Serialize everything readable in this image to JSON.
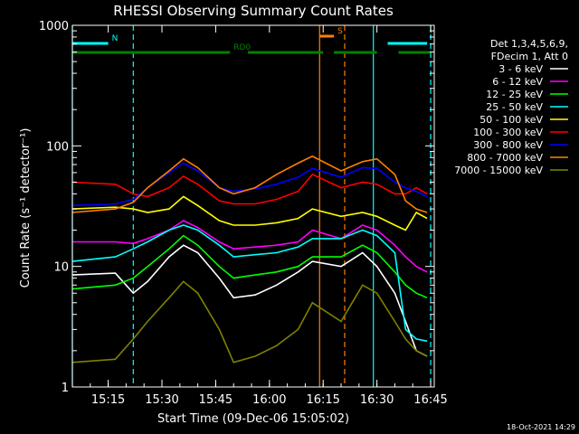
{
  "chart_data": {
    "type": "line",
    "title": "RHESSI Observing Summary Count Rates",
    "xlabel": "Start Time (09-Dec-06 15:05:02)",
    "ylabel": "Count Rate (s⁻¹ detector⁻¹)",
    "y_scale": "log",
    "ylim": [
      1,
      1000
    ],
    "xlim": [
      "15:05",
      "16:46"
    ],
    "x_ticks": [
      "15:15",
      "15:30",
      "15:45",
      "16:00",
      "16:15",
      "16:30",
      "16:45"
    ],
    "y_ticks": [
      "1",
      "10",
      "100",
      "1000"
    ],
    "legend_position": "right",
    "legend_header": [
      "Det 1,3,4,5,6,9,",
      "FDecim 1, Att 0"
    ],
    "series": [
      {
        "name": "3 - 6 keV",
        "color": "#ffffff",
        "x": [
          "15:05",
          "15:17",
          "15:22",
          "15:26",
          "15:32",
          "15:36",
          "15:40",
          "15:46",
          "15:50",
          "15:56",
          "16:02",
          "16:08",
          "16:12",
          "16:20",
          "16:26",
          "16:30",
          "16:35",
          "16:38",
          "16:41",
          "16:44"
        ],
        "values": [
          8.5,
          8.8,
          6,
          7.5,
          12,
          15,
          13,
          8,
          5.5,
          5.8,
          7,
          9,
          11,
          10,
          13,
          10,
          6,
          3.5,
          2,
          1.8
        ]
      },
      {
        "name": "6 - 12 keV",
        "color": "#ff00ff",
        "x": [
          "15:05",
          "15:17",
          "15:22",
          "15:26",
          "15:32",
          "15:36",
          "15:40",
          "15:46",
          "15:50",
          "15:56",
          "16:02",
          "16:08",
          "16:12",
          "16:20",
          "16:26",
          "16:30",
          "16:35",
          "16:38",
          "16:41",
          "16:44"
        ],
        "values": [
          16,
          16,
          15.5,
          17,
          20,
          24,
          21,
          16,
          14,
          14.5,
          15,
          16,
          20,
          17,
          22,
          20,
          15,
          12,
          10,
          9
        ]
      },
      {
        "name": "12 - 25 keV",
        "color": "#00ff00",
        "x": [
          "15:05",
          "15:17",
          "15:22",
          "15:26",
          "15:32",
          "15:36",
          "15:40",
          "15:46",
          "15:50",
          "15:56",
          "16:02",
          "16:08",
          "16:12",
          "16:20",
          "16:26",
          "16:30",
          "16:35",
          "16:38",
          "16:41",
          "16:44"
        ],
        "values": [
          6.5,
          7,
          8,
          10,
          14,
          18,
          15,
          10,
          8,
          8.5,
          9,
          10,
          12,
          12,
          15,
          13,
          9,
          7,
          6,
          5.5
        ]
      },
      {
        "name": "25 - 50 keV",
        "color": "#00ffff",
        "x": [
          "15:05",
          "15:17",
          "15:22",
          "15:26",
          "15:32",
          "15:36",
          "15:40",
          "15:46",
          "15:50",
          "15:56",
          "16:02",
          "16:08",
          "16:12",
          "16:20",
          "16:26",
          "16:30",
          "16:35",
          "16:38",
          "16:41",
          "16:44"
        ],
        "values": [
          11,
          12,
          14,
          16,
          20,
          22,
          20,
          15,
          12,
          12.5,
          13,
          14.5,
          17,
          17,
          20,
          18,
          13,
          3,
          2.5,
          2.4
        ]
      },
      {
        "name": "50 - 100 keV",
        "color": "#ffff00",
        "x": [
          "15:05",
          "15:17",
          "15:22",
          "15:26",
          "15:32",
          "15:36",
          "15:40",
          "15:46",
          "15:50",
          "15:56",
          "16:02",
          "16:08",
          "16:12",
          "16:20",
          "16:26",
          "16:30",
          "16:35",
          "16:38",
          "16:41",
          "16:44"
        ],
        "values": [
          30,
          31,
          30,
          28,
          30,
          38,
          32,
          24,
          22,
          22,
          23,
          25,
          30,
          26,
          28,
          26,
          22,
          20,
          28,
          25
        ]
      },
      {
        "name": "100 - 300 keV",
        "color": "#ff0000",
        "x": [
          "15:05",
          "15:17",
          "15:22",
          "15:26",
          "15:32",
          "15:36",
          "15:40",
          "15:46",
          "15:50",
          "15:56",
          "16:02",
          "16:08",
          "16:12",
          "16:20",
          "16:26",
          "16:30",
          "16:35",
          "16:38",
          "16:41",
          "16:44"
        ],
        "values": [
          50,
          48,
          40,
          38,
          45,
          56,
          48,
          35,
          33,
          33,
          36,
          42,
          58,
          45,
          50,
          48,
          40,
          40,
          45,
          40
        ]
      },
      {
        "name": "300 - 800 keV",
        "color": "#0000ff",
        "x": [
          "15:05",
          "15:17",
          "15:22",
          "15:26",
          "15:32",
          "15:36",
          "15:40",
          "15:46",
          "15:50",
          "15:56",
          "16:02",
          "16:08",
          "16:12",
          "16:20",
          "16:26",
          "16:30",
          "16:35",
          "16:38",
          "16:41",
          "16:44"
        ],
        "values": [
          32,
          33,
          36,
          45,
          60,
          72,
          62,
          45,
          42,
          44,
          48,
          55,
          65,
          55,
          66,
          65,
          50,
          45,
          42,
          38
        ]
      },
      {
        "name": "800 - 7000 keV",
        "color": "#ff8000",
        "x": [
          "15:05",
          "15:17",
          "15:22",
          "15:26",
          "15:32",
          "15:36",
          "15:40",
          "15:46",
          "15:50",
          "15:56",
          "16:02",
          "16:08",
          "16:12",
          "16:20",
          "16:26",
          "16:30",
          "16:35",
          "16:38",
          "16:41",
          "16:44"
        ],
        "values": [
          28,
          30,
          34,
          45,
          62,
          78,
          66,
          45,
          40,
          45,
          58,
          72,
          82,
          62,
          74,
          78,
          58,
          35,
          30,
          28
        ]
      },
      {
        "name": "7000 - 15000 keV",
        "color": "#808000",
        "x": [
          "15:05",
          "15:17",
          "15:22",
          "15:26",
          "15:32",
          "15:36",
          "15:40",
          "15:46",
          "15:50",
          "15:56",
          "16:02",
          "16:08",
          "16:12",
          "16:20",
          "16:26",
          "16:30",
          "16:35",
          "16:38",
          "16:41",
          "16:44"
        ],
        "values": [
          1.6,
          1.7,
          2.5,
          3.5,
          5.5,
          7.5,
          6,
          3,
          1.6,
          1.8,
          2.2,
          3,
          5,
          3.5,
          7,
          6,
          3.5,
          2.5,
          2,
          1.8
        ]
      }
    ],
    "state_bars": [
      {
        "label": "N",
        "color": "#00ffff",
        "segments": [
          [
            "15:05",
            "15:15"
          ],
          [
            "16:33",
            "16:44"
          ]
        ]
      },
      {
        "label": "RD0",
        "color": "#008000",
        "segments": [
          [
            "15:05",
            "15:49"
          ],
          [
            "15:54",
            "16:15"
          ],
          [
            "16:18",
            "16:30"
          ],
          [
            "16:36",
            "16:45"
          ]
        ]
      },
      {
        "label": "S",
        "color": "#ff8000",
        "segments": [
          [
            "16:14",
            "16:18"
          ]
        ]
      }
    ],
    "vertical_markers": [
      {
        "x": "15:05",
        "color": "#00ffff",
        "style": "solid"
      },
      {
        "x": "15:22",
        "color": "#00ffff",
        "style": "dashed"
      },
      {
        "x": "16:14",
        "color": "#ff8000",
        "style": "solid"
      },
      {
        "x": "16:21",
        "color": "#ff8000",
        "style": "dashed"
      },
      {
        "x": "16:29",
        "color": "#00ffff",
        "style": "solid"
      },
      {
        "x": "16:45",
        "color": "#00ffff",
        "style": "dashed"
      }
    ],
    "timestamp": "18-Oct-2021 14:29"
  }
}
